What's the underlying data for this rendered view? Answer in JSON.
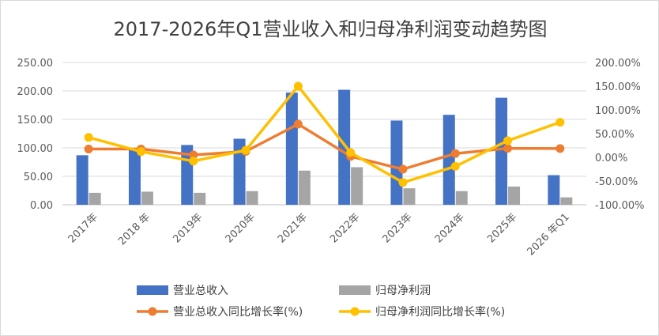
{
  "chart_data": {
    "type": "bar",
    "title": "2017-2026年Q1营业收入和归母净利润变动趋势图",
    "categories": [
      "2017年",
      "2018 年",
      "2019年",
      "2020年",
      "2021年",
      "2022年",
      "2023年",
      "2024年",
      "2025年",
      "2026 年Q1"
    ],
    "y_left": {
      "ylim": [
        0,
        250
      ],
      "ticks": [
        "0.00",
        "50.00",
        "100.00",
        "150.00",
        "200.00",
        "250.00"
      ]
    },
    "y_right": {
      "ylim": [
        -100,
        200
      ],
      "ticks": [
        "-100.00%",
        "-50.00%",
        "0.00%",
        "50.00%",
        "100.00%",
        "150.00%",
        "200.00%"
      ]
    },
    "series": [
      {
        "name": "营业总收入",
        "type": "bar",
        "axis": "left",
        "color": "#4472C4",
        "values": [
          87,
          97,
          105,
          116,
          197,
          202,
          148,
          158,
          188,
          52
        ]
      },
      {
        "name": "归母净利润",
        "type": "bar",
        "axis": "left",
        "color": "#A5A5A5",
        "values": [
          21,
          23,
          21,
          24,
          60,
          66,
          29,
          24,
          32,
          13
        ]
      },
      {
        "name": "营业总收入同比增长率(%)",
        "type": "line",
        "axis": "right",
        "color": "#ED7D31",
        "values": [
          17.5,
          17.5,
          5,
          12.5,
          70,
          2,
          -25,
          8,
          19,
          18.5
        ]
      },
      {
        "name": "归母净利润同比增长率(%)",
        "type": "line",
        "axis": "right",
        "color": "#FFC000",
        "values": [
          42,
          12,
          -8,
          15,
          150,
          10,
          -53,
          -19,
          35,
          74
        ]
      }
    ],
    "legend_position": "bottom",
    "grid": true
  }
}
